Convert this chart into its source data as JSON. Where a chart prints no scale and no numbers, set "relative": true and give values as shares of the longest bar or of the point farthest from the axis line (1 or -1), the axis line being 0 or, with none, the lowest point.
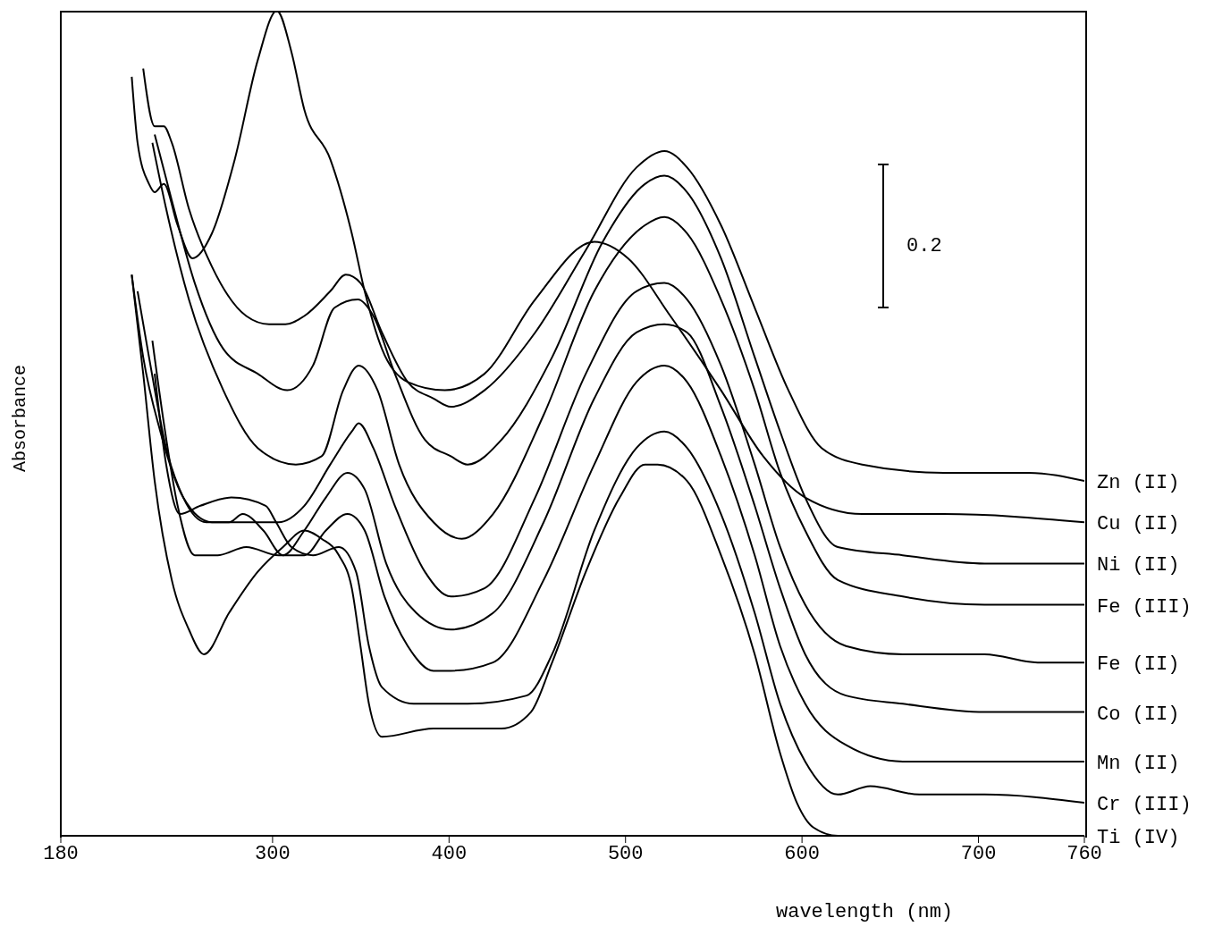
{
  "chart_data": {
    "type": "line",
    "xlabel": "wavelength (nm)",
    "ylabel": "Absorbance",
    "relative": true,
    "xlim": [
      180,
      760
    ],
    "xticks": [
      180,
      300,
      400,
      500,
      600,
      700,
      760
    ],
    "marker": "none",
    "line_style": "solid",
    "annotations": [
      "0.2"
    ],
    "series": [
      {
        "name": "Zn (II)",
        "color": "#000000",
        "x": [
          226.7,
          233.2,
          238.4,
          242.9,
          252.6,
          265.6,
          285.1,
          298,
          307.3,
          318,
          332.7,
          341.5,
          349.8,
          362,
          376.6,
          391.2,
          401,
          420.1,
          448.8,
          477.5,
          506.2,
          522,
          534.9,
          554.1,
          573.2,
          592.3,
          611.1,
          634.1,
          680.2,
          728.5,
          760
        ],
        "values": [
          0.93,
          0.86,
          0.86,
          0.84,
          0.76,
          0.69,
          0.63,
          0.62,
          0.62,
          0.63,
          0.66,
          0.68,
          0.67,
          0.61,
          0.55,
          0.53,
          0.52,
          0.54,
          0.61,
          0.71,
          0.81,
          0.83,
          0.81,
          0.74,
          0.64,
          0.54,
          0.47,
          0.45,
          0.44,
          0.44,
          0.43
        ]
      },
      {
        "name": "Cu (II)",
        "color": "#000000",
        "x": [
          220.2,
          223.5,
          230,
          233.2,
          238.4,
          246.2,
          254.6,
          265.6,
          278.6,
          291.6,
          302.4,
          310.7,
          318,
          332.7,
          344.9,
          352.2,
          362,
          376.6,
          397.6,
          420.1,
          448.8,
          482.3,
          501.4,
          525.4,
          554.1,
          578,
          601.8,
          634.1,
          680.2,
          760
        ],
        "values": [
          0.92,
          0.84,
          0.79,
          0.78,
          0.79,
          0.74,
          0.7,
          0.73,
          0.82,
          0.94,
          1.0,
          0.95,
          0.88,
          0.82,
          0.73,
          0.66,
          0.59,
          0.55,
          0.54,
          0.56,
          0.65,
          0.72,
          0.7,
          0.63,
          0.54,
          0.46,
          0.41,
          0.39,
          0.39,
          0.38
        ]
      },
      {
        "name": "Ni (II)",
        "color": "#000000",
        "x": [
          233.2,
          242.9,
          255.9,
          272.1,
          291.6,
          308.3,
          322.9,
          335.1,
          348.3,
          357.1,
          369.3,
          386.3,
          401,
          410.5,
          429.7,
          458.4,
          487.1,
          511,
          522,
          534.9,
          554.1,
          573.2,
          587.6,
          601.8,
          620.3,
          657.1,
          703.5,
          760
        ],
        "values": [
          0.85,
          0.77,
          0.67,
          0.59,
          0.56,
          0.54,
          0.57,
          0.64,
          0.65,
          0.63,
          0.56,
          0.48,
          0.46,
          0.45,
          0.48,
          0.58,
          0.72,
          0.79,
          0.8,
          0.78,
          0.7,
          0.58,
          0.49,
          0.41,
          0.35,
          0.34,
          0.33,
          0.33
        ]
      },
      {
        "name": "Fe (III)",
        "color": "#000000",
        "x": [
          231.9,
          239.7,
          252.6,
          272.1,
          291.6,
          313.2,
          327.8,
          340,
          348.8,
          359.5,
          371.7,
          391.2,
          407.2,
          424.9,
          453.6,
          482.3,
          511,
          522,
          534.9,
          554.1,
          573.2,
          587.6,
          601.8,
          620.3,
          657.1,
          703.5,
          760
        ],
        "values": [
          0.84,
          0.76,
          0.65,
          0.54,
          0.47,
          0.45,
          0.46,
          0.54,
          0.57,
          0.54,
          0.45,
          0.38,
          0.36,
          0.39,
          0.51,
          0.66,
          0.74,
          0.75,
          0.73,
          0.65,
          0.54,
          0.44,
          0.37,
          0.31,
          0.29,
          0.28,
          0.28
        ]
      },
      {
        "name": "Fe (II)",
        "color": "#000000",
        "x": [
          220.2,
          226.7,
          236.4,
          249.4,
          265.6,
          285.1,
          303.4,
          318,
          332.7,
          344.9,
          348.8,
          357.1,
          369.3,
          386.3,
          401,
          420.1,
          448.8,
          477.5,
          506.2,
          522,
          534.9,
          554.1,
          573.2,
          587.6,
          601.8,
          624.9,
          657.1,
          703.5,
          733.5,
          760
        ],
        "values": [
          0.68,
          0.58,
          0.49,
          0.41,
          0.38,
          0.38,
          0.38,
          0.4,
          0.45,
          0.49,
          0.5,
          0.47,
          0.4,
          0.32,
          0.29,
          0.3,
          0.41,
          0.56,
          0.66,
          0.67,
          0.65,
          0.57,
          0.45,
          0.35,
          0.28,
          0.23,
          0.22,
          0.22,
          0.21,
          0.21
        ]
      },
      {
        "name": "Co (II)",
        "color": "#000000",
        "x": [
          223.5,
          230,
          239.7,
          249.4,
          262.4,
          275.3,
          283.1,
          294.8,
          305.9,
          318,
          330.2,
          342.4,
          352.2,
          364.4,
          381.5,
          401,
          424.9,
          453.6,
          482.3,
          506.2,
          522,
          534.9,
          554.1,
          573.2,
          587.6,
          601.8,
          624.9,
          657.1,
          703.5,
          760
        ],
        "values": [
          0.66,
          0.58,
          0.47,
          0.41,
          0.38,
          0.38,
          0.39,
          0.37,
          0.34,
          0.37,
          0.41,
          0.44,
          0.42,
          0.33,
          0.27,
          0.25,
          0.27,
          0.38,
          0.53,
          0.61,
          0.62,
          0.61,
          0.52,
          0.4,
          0.3,
          0.22,
          0.17,
          0.16,
          0.15,
          0.15
        ]
      },
      {
        "name": "Mn (II)",
        "color": "#000000",
        "x": [
          231.9,
          238.4,
          246.2,
          255.9,
          268.9,
          285.1,
          303.4,
          318,
          330.2,
          342.4,
          352.2,
          363.4,
          376.6,
          391.2,
          401,
          424.9,
          453.6,
          482.3,
          506.2,
          522,
          534.9,
          554.1,
          573.2,
          587.6,
          601.8,
          624.9,
          657.1,
          680.2,
          703.5,
          760
        ],
        "values": [
          0.6,
          0.5,
          0.4,
          0.34,
          0.34,
          0.35,
          0.34,
          0.34,
          0.37,
          0.39,
          0.37,
          0.29,
          0.23,
          0.2,
          0.2,
          0.21,
          0.31,
          0.45,
          0.55,
          0.57,
          0.55,
          0.46,
          0.34,
          0.23,
          0.16,
          0.11,
          0.09,
          0.09,
          0.09,
          0.09
        ]
      },
      {
        "name": "Cr (III)",
        "color": "#000000",
        "x": [
          233.2,
          239.7,
          247.5,
          259.1,
          276.6,
          296.1,
          302,
          310.7,
          322.9,
          337.6,
          347.3,
          354.6,
          362,
          380,
          410.5,
          444,
          458.4,
          482.3,
          506.2,
          522,
          534.9,
          554.1,
          573.2,
          587.6,
          601.8,
          620.3,
          638.7,
          666.4,
          703.5,
          760
        ],
        "values": [
          0.56,
          0.45,
          0.39,
          0.4,
          0.41,
          0.4,
          0.38,
          0.35,
          0.34,
          0.35,
          0.32,
          0.23,
          0.18,
          0.16,
          0.16,
          0.17,
          0.22,
          0.37,
          0.47,
          0.49,
          0.47,
          0.39,
          0.27,
          0.16,
          0.09,
          0.05,
          0.06,
          0.05,
          0.05,
          0.04
        ]
      },
      {
        "name": "Ti (IV)",
        "color": "#000000",
        "x": [
          220.2,
          226.7,
          233.2,
          242.9,
          252.6,
          261.1,
          275.3,
          291.6,
          305.9,
          318,
          327.8,
          337.6,
          344.9,
          349.8,
          354.6,
          362,
          391.2,
          429.7,
          446.4,
          458.4,
          477.5,
          496.7,
          511,
          518.2,
          534.9,
          554.1,
          573.2,
          587.6,
          597.1,
          606.5,
          620.3,
          657.1,
          760
        ],
        "values": [
          0.68,
          0.56,
          0.43,
          0.31,
          0.25,
          0.22,
          0.27,
          0.32,
          0.35,
          0.37,
          0.36,
          0.34,
          0.3,
          0.23,
          0.16,
          0.12,
          0.13,
          0.13,
          0.15,
          0.21,
          0.32,
          0.41,
          0.45,
          0.45,
          0.43,
          0.34,
          0.22,
          0.1,
          0.04,
          0.01,
          0,
          0,
          0
        ]
      }
    ]
  }
}
